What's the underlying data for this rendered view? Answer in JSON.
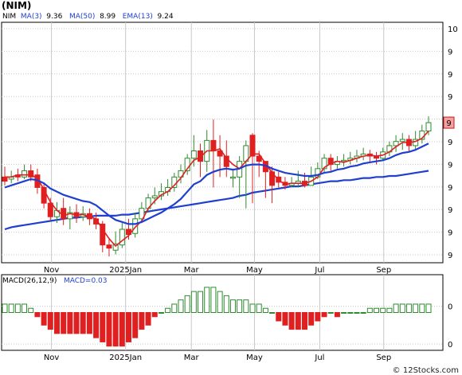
{
  "ticker": "(NIM)",
  "legend": {
    "symbol": "NIM",
    "ma3_label": "MA(3)",
    "ma3_value": "9.36",
    "ma50_label": "MA(50)",
    "ma50_value": "8.99",
    "ema13_label": "EMA(13)",
    "ema13_value": "9.24"
  },
  "macd_legend": {
    "label": "MACD(26,12,9)",
    "value_label": "MACD=0.03"
  },
  "footer": "© 12Stocks.com",
  "colors": {
    "up": "#2e8b2e",
    "down": "#e02020",
    "ma3": "#e02020",
    "ema13": "#1f3fd0",
    "ma50": "#1f3fd0",
    "macd_up": "#2e8b2e",
    "macd_down": "#e02020",
    "grid": "#c8c8c8"
  },
  "chart_data": [
    {
      "type": "candlestick",
      "title": "(NIM)",
      "x_tick_labels": [
        "Nov",
        "2025Jan",
        "Mar",
        "May",
        "Jul",
        "Sep"
      ],
      "y_tick_labels": [
        "10",
        "9",
        "9",
        "9",
        "9",
        "9",
        "9",
        "9",
        "9",
        "9",
        "9"
      ],
      "current_price_label": "9",
      "candles": [
        [
          8.8,
          8.76,
          8.9,
          8.72
        ],
        [
          8.78,
          8.8,
          8.86,
          8.74
        ],
        [
          8.82,
          8.8,
          8.88,
          8.76
        ],
        [
          8.8,
          8.86,
          8.92,
          8.78
        ],
        [
          8.86,
          8.8,
          8.92,
          8.76
        ],
        [
          8.82,
          8.7,
          8.88,
          8.64
        ],
        [
          8.7,
          8.55,
          8.74,
          8.5
        ],
        [
          8.55,
          8.42,
          8.6,
          8.38
        ],
        [
          8.42,
          8.48,
          8.56,
          8.36
        ],
        [
          8.5,
          8.4,
          8.6,
          8.34
        ],
        [
          8.4,
          8.46,
          8.52,
          8.3
        ],
        [
          8.46,
          8.42,
          8.54,
          8.36
        ],
        [
          8.42,
          8.45,
          8.52,
          8.38
        ],
        [
          8.45,
          8.4,
          8.5,
          8.34
        ],
        [
          8.4,
          8.35,
          8.46,
          8.3
        ],
        [
          8.35,
          8.15,
          8.38,
          8.08
        ],
        [
          8.15,
          8.12,
          8.22,
          8.04
        ],
        [
          8.1,
          8.16,
          8.28,
          8.06
        ],
        [
          8.15,
          8.3,
          8.36,
          8.12
        ],
        [
          8.3,
          8.25,
          8.4,
          8.2
        ],
        [
          8.26,
          8.4,
          8.46,
          8.22
        ],
        [
          8.4,
          8.5,
          8.56,
          8.36
        ],
        [
          8.5,
          8.6,
          8.64,
          8.46
        ],
        [
          8.6,
          8.62,
          8.7,
          8.54
        ],
        [
          8.62,
          8.66,
          8.74,
          8.58
        ],
        [
          8.66,
          8.7,
          8.78,
          8.62
        ],
        [
          8.7,
          8.8,
          8.84,
          8.66
        ],
        [
          8.8,
          8.86,
          8.92,
          8.74
        ],
        [
          8.86,
          8.98,
          9.02,
          8.82
        ],
        [
          8.98,
          9.05,
          9.2,
          8.9
        ],
        [
          9.05,
          8.95,
          9.12,
          8.8
        ],
        [
          8.95,
          9.15,
          9.25,
          8.85
        ],
        [
          9.15,
          9.05,
          9.35,
          8.7
        ],
        [
          9.05,
          9.0,
          9.2,
          8.8
        ],
        [
          9.0,
          8.9,
          9.15,
          8.8
        ],
        [
          8.8,
          8.8,
          8.88,
          8.7
        ],
        [
          8.8,
          8.95,
          9.0,
          8.6
        ],
        [
          8.95,
          9.1,
          9.15,
          8.5
        ],
        [
          9.2,
          9.0,
          9.22,
          8.55
        ],
        [
          9.0,
          8.95,
          9.05,
          8.8
        ],
        [
          8.95,
          8.85,
          8.95,
          8.6
        ],
        [
          8.85,
          8.72,
          8.9,
          8.55
        ],
        [
          8.8,
          8.75,
          8.85,
          8.7
        ],
        [
          8.75,
          8.72,
          8.8,
          8.68
        ],
        [
          8.72,
          8.74,
          8.8,
          8.7
        ],
        [
          8.74,
          8.76,
          8.86,
          8.7
        ],
        [
          8.76,
          8.72,
          8.84,
          8.7
        ],
        [
          8.72,
          8.8,
          8.9,
          8.72
        ],
        [
          8.8,
          8.88,
          8.94,
          8.78
        ],
        [
          8.88,
          8.98,
          9.02,
          8.84
        ],
        [
          8.98,
          8.92,
          9.02,
          8.86
        ],
        [
          8.92,
          8.95,
          9.0,
          8.88
        ],
        [
          8.95,
          8.96,
          9.02,
          8.9
        ],
        [
          8.96,
          8.98,
          9.04,
          8.92
        ],
        [
          8.98,
          9.0,
          9.06,
          8.94
        ],
        [
          9.0,
          9.02,
          9.08,
          8.96
        ],
        [
          9.02,
          9.0,
          9.06,
          8.94
        ],
        [
          9.0,
          8.98,
          9.04,
          8.92
        ],
        [
          8.98,
          9.04,
          9.08,
          8.96
        ],
        [
          9.04,
          9.1,
          9.14,
          9.0
        ],
        [
          9.1,
          9.14,
          9.2,
          9.04
        ],
        [
          9.14,
          9.16,
          9.22,
          9.06
        ],
        [
          9.16,
          9.1,
          9.2,
          9.04
        ],
        [
          9.1,
          9.16,
          9.24,
          9.06
        ],
        [
          9.16,
          9.24,
          9.3,
          9.12
        ],
        [
          9.24,
          9.32,
          9.38,
          9.2
        ]
      ],
      "ma3": [
        8.8,
        8.8,
        8.82,
        8.82,
        8.82,
        8.79,
        8.68,
        8.56,
        8.48,
        8.43,
        8.45,
        8.44,
        8.44,
        8.42,
        8.4,
        8.3,
        8.21,
        8.14,
        8.19,
        8.24,
        8.32,
        8.38,
        8.5,
        8.57,
        8.63,
        8.66,
        8.72,
        8.79,
        8.88,
        8.96,
        8.99,
        9.05,
        9.05,
        9.07,
        8.98,
        8.92,
        8.88,
        8.95,
        9.02,
        9.02,
        8.93,
        8.84,
        8.77,
        8.73,
        8.74,
        8.74,
        8.74,
        8.76,
        8.8,
        8.89,
        8.93,
        8.95,
        8.94,
        8.96,
        8.98,
        9.0,
        9.01,
        9.0,
        9.01,
        9.04,
        9.09,
        9.13,
        9.13,
        9.14,
        9.17,
        9.24
      ],
      "ema13": [
        8.7,
        8.72,
        8.74,
        8.76,
        8.78,
        8.77,
        8.74,
        8.69,
        8.66,
        8.63,
        8.61,
        8.59,
        8.57,
        8.56,
        8.53,
        8.48,
        8.43,
        8.39,
        8.37,
        8.35,
        8.35,
        8.37,
        8.4,
        8.43,
        8.46,
        8.5,
        8.54,
        8.59,
        8.66,
        8.73,
        8.76,
        8.82,
        8.85,
        8.87,
        8.88,
        8.87,
        8.88,
        8.91,
        8.92,
        8.92,
        8.91,
        8.88,
        8.86,
        8.84,
        8.83,
        8.82,
        8.81,
        8.81,
        8.82,
        8.84,
        8.85,
        8.87,
        8.88,
        8.9,
        8.91,
        8.93,
        8.94,
        8.95,
        8.96,
        8.98,
        9.01,
        9.03,
        9.04,
        9.06,
        9.09,
        9.12
      ],
      "ma50": [
        8.3,
        8.32,
        8.33,
        8.34,
        8.35,
        8.36,
        8.37,
        8.38,
        8.39,
        8.4,
        8.41,
        8.41,
        8.42,
        8.42,
        8.43,
        8.43,
        8.43,
        8.43,
        8.44,
        8.44,
        8.45,
        8.46,
        8.47,
        8.48,
        8.49,
        8.5,
        8.51,
        8.52,
        8.53,
        8.54,
        8.55,
        8.56,
        8.57,
        8.58,
        8.59,
        8.6,
        8.62,
        8.63,
        8.65,
        8.66,
        8.67,
        8.68,
        8.69,
        8.7,
        8.71,
        8.71,
        8.72,
        8.73,
        8.74,
        8.75,
        8.76,
        8.76,
        8.77,
        8.77,
        8.78,
        8.79,
        8.79,
        8.8,
        8.8,
        8.81,
        8.81,
        8.82,
        8.83,
        8.84,
        8.85,
        8.86
      ]
    },
    {
      "type": "bar",
      "title": "MACD(26,12,9)",
      "y_tick_labels": [
        "0",
        "0"
      ],
      "values": [
        0.02,
        0.02,
        0.02,
        0.02,
        0.01,
        -0.01,
        -0.03,
        -0.04,
        -0.05,
        -0.05,
        -0.05,
        -0.05,
        -0.05,
        -0.05,
        -0.06,
        -0.07,
        -0.08,
        -0.08,
        -0.08,
        -0.07,
        -0.06,
        -0.04,
        -0.03,
        -0.01,
        0.0,
        0.01,
        0.02,
        0.03,
        0.04,
        0.05,
        0.05,
        0.06,
        0.06,
        0.05,
        0.04,
        0.03,
        0.03,
        0.03,
        0.02,
        0.02,
        0.01,
        0.0,
        -0.02,
        -0.03,
        -0.04,
        -0.04,
        -0.04,
        -0.03,
        -0.02,
        -0.01,
        0.0,
        -0.01,
        0.0,
        0.0,
        0.0,
        0.0,
        0.01,
        0.01,
        0.01,
        0.01,
        0.02,
        0.02,
        0.02,
        0.02,
        0.02,
        0.02
      ]
    }
  ]
}
